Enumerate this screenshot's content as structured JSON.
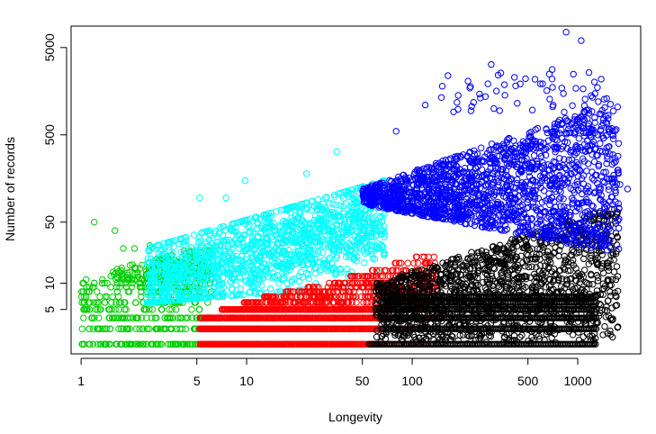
{
  "chart_data": {
    "type": "scatter",
    "title": "",
    "xlabel": "Longevity",
    "ylabel": "Number of records",
    "x_scale": "log",
    "y_scale": "log",
    "xlim": [
      0.87,
      2400
    ],
    "ylim": [
      1.55,
      8800
    ],
    "x_ticks": [
      1,
      5,
      10,
      50,
      100,
      500,
      1000
    ],
    "x_tick_labels": [
      "1",
      "5",
      "10",
      "50",
      "100",
      "500",
      "1000"
    ],
    "y_ticks": [
      5,
      10,
      50,
      500,
      5000
    ],
    "y_tick_labels": [
      "5",
      "10",
      "50",
      "500",
      "5000"
    ],
    "marker": "open-circle",
    "grid": false,
    "legend": "none",
    "series": [
      {
        "color": "#00CD00",
        "x_range": [
          1,
          6
        ],
        "y_range": [
          2,
          50
        ],
        "outliers": [
          [
            1.2,
            50
          ],
          [
            1.6,
            40
          ],
          [
            1.8,
            25
          ],
          [
            2.1,
            25
          ],
          [
            2.6,
            27
          ]
        ]
      },
      {
        "color": "#00FFFF",
        "x_range": [
          2.4,
          75
        ],
        "y_range": [
          6,
          320
        ],
        "outliers": [
          [
            5.2,
            95
          ],
          [
            7.5,
            95
          ],
          [
            9.8,
            150
          ],
          [
            23,
            180
          ],
          [
            35,
            320
          ]
        ]
      },
      {
        "color": "#FF0000",
        "x_range": [
          5,
          145
        ],
        "y_range": [
          2,
          26
        ],
        "outliers": []
      },
      {
        "color": "#000000",
        "x_range": [
          55,
          1900
        ],
        "y_range": [
          2,
          90
        ],
        "outliers": [
          [
            1700,
            11
          ]
        ]
      },
      {
        "color": "#0000FF",
        "x_range": [
          48,
          2000
        ],
        "y_range": [
          25,
          7500
        ],
        "outliers": [
          [
            850,
            7500
          ],
          [
            1050,
            6000
          ],
          [
            300,
            3200
          ],
          [
            700,
            2800
          ],
          [
            120,
            1100
          ],
          [
            80,
            550
          ],
          [
            2000,
            120
          ]
        ]
      }
    ]
  }
}
